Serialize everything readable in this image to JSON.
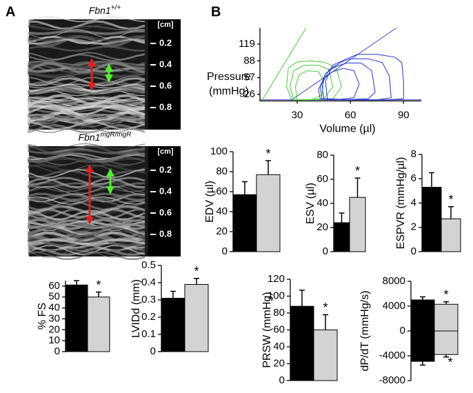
{
  "panel_labels": [
    "A",
    "B"
  ],
  "echo_images": [
    {
      "title": "Fbn1",
      "title_sup": "+/+",
      "scale_unit": "[cm]",
      "scale_ticks": [
        0.2,
        0.4,
        0.6,
        0.8
      ]
    },
    {
      "title": "Fbn1",
      "title_sup": "mgR/mgR",
      "scale_unit": "[cm]",
      "scale_ticks": [
        0.2,
        0.4,
        0.6,
        0.8
      ]
    }
  ],
  "chart_data": [
    {
      "type": "bar",
      "ylabel": "% FS",
      "categories": [
        null,
        null
      ],
      "values": [
        61,
        50
      ],
      "errors": [
        4,
        4.5
      ],
      "colors": [
        "#000000",
        "#d3d3d3"
      ],
      "ylim": [
        0,
        65
      ],
      "yticks": [
        0,
        10,
        20,
        30,
        40,
        50,
        60
      ],
      "annotations": [
        "*"
      ]
    },
    {
      "type": "bar",
      "ylabel": "LVIDd (mm)",
      "categories": [
        null,
        null
      ],
      "values": [
        0.31,
        0.39
      ],
      "errors": [
        0.04,
        0.035
      ],
      "colors": [
        "#000000",
        "#d3d3d3"
      ],
      "ylim": [
        0,
        0.5
      ],
      "yticks": [
        0,
        0.1,
        0.2,
        0.3,
        0.4,
        0.5
      ],
      "annotations": [
        "*"
      ]
    },
    {
      "type": "pv-loop",
      "xlabel": "Volume (µl)",
      "ylabel_lines": [
        "Pressure",
        "(mmHg)"
      ],
      "xlim": [
        9,
        100
      ],
      "xticks": [
        30,
        60,
        90
      ],
      "ylim": [
        14,
        149
      ],
      "yticks": [
        26,
        57,
        88,
        119
      ],
      "series": [
        {
          "color": "#3c3cc8",
          "x": [
            9,
            100
          ],
          "y": [
            16,
            16
          ]
        },
        {
          "color": "#44cc33",
          "x": [
            10,
            35
          ],
          "y": [
            14,
            149
          ]
        },
        {
          "color": "#3c3cc8",
          "x": [
            26,
            86
          ],
          "y": [
            14,
            149
          ]
        },
        {
          "color": "#44cc33",
          "x": [
            27,
            24,
            25,
            30,
            38,
            46,
            52,
            55,
            50,
            40,
            30,
            27
          ],
          "y": [
            16,
            40,
            75,
            86,
            88,
            85,
            75,
            40,
            18,
            16,
            16,
            16
          ]
        },
        {
          "color": "#44cc33",
          "x": [
            28,
            26,
            28,
            34,
            42,
            48,
            50,
            45,
            35,
            28
          ],
          "y": [
            16,
            40,
            70,
            80,
            80,
            72,
            40,
            18,
            16,
            16
          ]
        },
        {
          "color": "#44cc33",
          "x": [
            30,
            29,
            31,
            36,
            42,
            45,
            44,
            38,
            30
          ],
          "y": [
            16,
            40,
            62,
            70,
            68,
            50,
            25,
            16,
            16
          ]
        },
        {
          "color": "#2233cc",
          "x": [
            47,
            46,
            50,
            58,
            64,
            75,
            85,
            89,
            90,
            90,
            80,
            60,
            47
          ],
          "y": [
            18,
            50,
            80,
            92,
            100,
            100,
            95,
            85,
            50,
            18,
            16,
            16,
            18
          ]
        },
        {
          "color": "#2233cc",
          "x": [
            45,
            44,
            48,
            55,
            60,
            70,
            78,
            82,
            83,
            75,
            60,
            45
          ],
          "y": [
            18,
            45,
            72,
            86,
            92,
            92,
            85,
            60,
            20,
            16,
            16,
            18
          ]
        },
        {
          "color": "#2233cc",
          "x": [
            44,
            43,
            46,
            52,
            58,
            66,
            72,
            74,
            70,
            55,
            44
          ],
          "y": [
            18,
            40,
            65,
            78,
            84,
            84,
            70,
            30,
            18,
            16,
            18
          ]
        },
        {
          "color": "#2233cc",
          "x": [
            43,
            42,
            45,
            50,
            56,
            62,
            65,
            62,
            52,
            43
          ],
          "y": [
            18,
            35,
            55,
            68,
            74,
            70,
            45,
            20,
            16,
            18
          ]
        }
      ]
    },
    {
      "type": "bar",
      "ylabel": "EDV (µl)",
      "categories": [
        null,
        null
      ],
      "values": [
        57,
        77
      ],
      "errors": [
        13,
        14
      ],
      "colors": [
        "#000000",
        "#d3d3d3"
      ],
      "ylim": [
        0,
        100
      ],
      "yticks": [
        0,
        20,
        40,
        60,
        80,
        100
      ],
      "annotations": [
        "*"
      ]
    },
    {
      "type": "bar",
      "ylabel": "ESV (µl)",
      "categories": [
        null,
        null
      ],
      "values": [
        24,
        45
      ],
      "errors": [
        8,
        16
      ],
      "colors": [
        "#000000",
        "#d3d3d3"
      ],
      "ylim": [
        0,
        80
      ],
      "yticks": [
        0,
        20,
        40,
        60,
        80
      ],
      "annotations": [
        "*"
      ]
    },
    {
      "type": "bar",
      "ylabel": "ESPVR (mmHg/µl)",
      "categories": [
        null,
        null
      ],
      "values": [
        5.3,
        2.7
      ],
      "errors": [
        1.2,
        1.0
      ],
      "colors": [
        "#000000",
        "#d3d3d3"
      ],
      "ylim": [
        0,
        8
      ],
      "yticks": [
        0,
        2,
        4,
        6,
        8
      ],
      "annotations": [
        "*"
      ]
    },
    {
      "type": "bar",
      "ylabel": "PRSW (mmHg)",
      "categories": [
        null,
        null
      ],
      "values": [
        88,
        60
      ],
      "errors": [
        19,
        18
      ],
      "colors": [
        "#000000",
        "#d3d3d3"
      ],
      "ylim": [
        0,
        120
      ],
      "yticks": [
        0,
        20,
        40,
        60,
        80,
        100,
        120
      ],
      "annotations": [
        "*"
      ]
    },
    {
      "type": "bar",
      "ylabel": "dP/dT (mmHg/s)",
      "categories": [
        null,
        null
      ],
      "series": [
        {
          "values": [
            5000,
            4300
          ],
          "errors": [
            500,
            400
          ]
        },
        {
          "values": [
            -4900,
            -3800
          ],
          "errors": [
            600,
            400
          ]
        }
      ],
      "colors": [
        "#000000",
        "#d3d3d3"
      ],
      "ylim": [
        -8000,
        8000
      ],
      "yticks": [
        -8000,
        -4000,
        0,
        4000,
        8000
      ],
      "annotations": [
        "*",
        "*"
      ]
    }
  ]
}
